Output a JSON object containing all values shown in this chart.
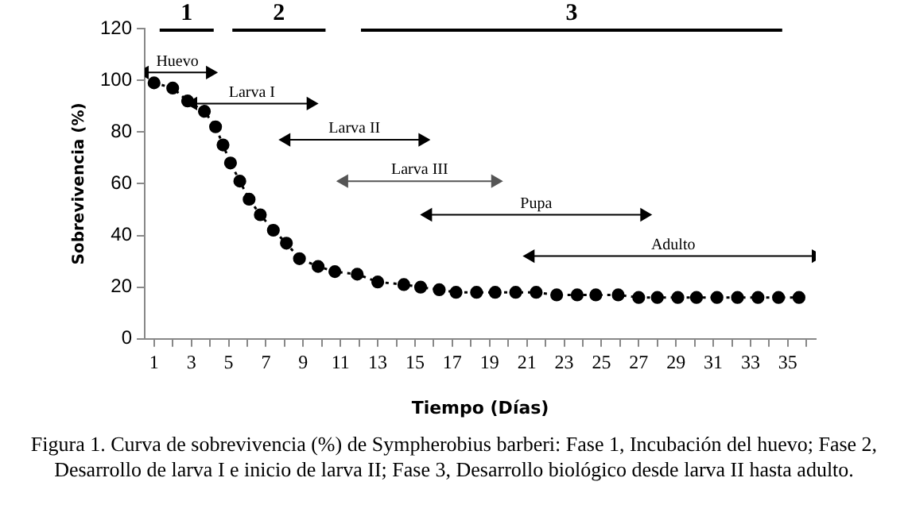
{
  "chart_data": {
    "type": "line",
    "xlabel": "Tiempo (Días)",
    "ylabel": "Sobrevivencia (%)",
    "xlim": [
      0.5,
      36.5
    ],
    "xticks": [
      1,
      {
        "value": 2,
        "label": null
      },
      3,
      {
        "value": 4,
        "label": null
      },
      5,
      {
        "value": 6,
        "label": null
      },
      7,
      {
        "value": 8,
        "label": null
      },
      9,
      {
        "value": 10,
        "label": null
      },
      11,
      {
        "value": 12,
        "label": null
      },
      13,
      {
        "value": 14,
        "label": null
      },
      15,
      {
        "value": 16,
        "label": null
      },
      17,
      {
        "value": 18,
        "label": null
      },
      19,
      {
        "value": 20,
        "label": null
      },
      21,
      {
        "value": 22,
        "label": null
      },
      23,
      {
        "value": 24,
        "label": null
      },
      25,
      {
        "value": 26,
        "label": null
      },
      27,
      {
        "value": 28,
        "label": null
      },
      29,
      {
        "value": 30,
        "label": null
      },
      31,
      {
        "value": 32,
        "label": null
      },
      33,
      {
        "value": 34,
        "label": null
      },
      35,
      {
        "value": 36,
        "label": null
      }
    ],
    "ylim": [
      0,
      120
    ],
    "yticks": [
      0,
      20,
      40,
      60,
      80,
      100,
      120
    ],
    "grid": false,
    "legend": false,
    "marker": "circle",
    "line_style": "dotted",
    "series": [
      {
        "color": "#000000",
        "x": [
          1.0,
          2.0,
          2.8,
          3.7,
          4.3,
          4.7,
          5.1,
          5.6,
          6.1,
          6.7,
          7.4,
          8.1,
          8.8,
          9.8,
          10.7,
          11.9,
          13.0,
          14.4,
          15.3,
          16.3,
          17.2,
          18.3,
          19.3,
          20.4,
          21.5,
          22.6,
          23.7,
          24.7,
          25.9,
          27.0,
          28.0,
          29.1,
          30.1,
          31.2,
          32.3,
          33.4,
          34.5,
          35.6
        ],
        "values": [
          99,
          97,
          92,
          88,
          82,
          75,
          68,
          61,
          54,
          48,
          42,
          37,
          31,
          28,
          26,
          25,
          22,
          21,
          20,
          19,
          18,
          18,
          18,
          18,
          18,
          17,
          17,
          17,
          17,
          16,
          16,
          16,
          16,
          16,
          16,
          16,
          16,
          16
        ]
      },
      {
        "name": "1",
        "color": "#000000",
        "marker": "none",
        "line_style": "solid",
        "x": [
          1.3,
          4.2
        ],
        "values": [
          120,
          120
        ]
      },
      {
        "name": "2",
        "color": "#000000",
        "marker": "none",
        "line_style": "solid",
        "x": [
          5.2,
          10.2
        ],
        "values": [
          120,
          120
        ]
      },
      {
        "name": "3",
        "color": "#000000",
        "marker": "none",
        "line_style": "solid",
        "x": [
          12.1,
          34.7
        ],
        "values": [
          120,
          120
        ]
      },
      {
        "name": "Huevo",
        "color": "#000000",
        "marker": "triangle",
        "line_style": "solid",
        "x": [
          0.5,
          4.0
        ],
        "values": [
          103,
          103
        ]
      },
      {
        "name": "Larva I",
        "color": "#000000",
        "marker": "triangle",
        "line_style": "solid",
        "x": [
          3.1,
          9.4
        ],
        "values": [
          91,
          91
        ]
      },
      {
        "name": "Larva II",
        "color": "#000000",
        "marker": "triangle",
        "line_style": "solid",
        "x": [
          8.1,
          15.4
        ],
        "values": [
          77,
          77
        ]
      },
      {
        "name": "Larva III",
        "color": "#555555",
        "marker": "triangle",
        "line_style": "solid",
        "x": [
          11.2,
          19.3
        ],
        "values": [
          61,
          61
        ]
      },
      {
        "name": "Pupa",
        "color": "#000000",
        "marker": "triangle",
        "line_style": "solid",
        "x": [
          15.7,
          27.3
        ],
        "values": [
          48,
          48
        ]
      },
      {
        "name": "Adulto",
        "color": "#000000",
        "marker": "triangle",
        "line_style": "solid",
        "x": [
          21.2,
          36.5
        ],
        "values": [
          32,
          32
        ]
      }
    ],
    "annotations": [
      "Figura 1. Curva de sobrevivencia (%) de Sympherobius barberi: Fase 1, Incubación del huevo; Fase 2, Desarrollo de larva I e inicio de larva II; Fase 3, Desarrollo biológico desde larva II hasta adulto."
    ]
  }
}
